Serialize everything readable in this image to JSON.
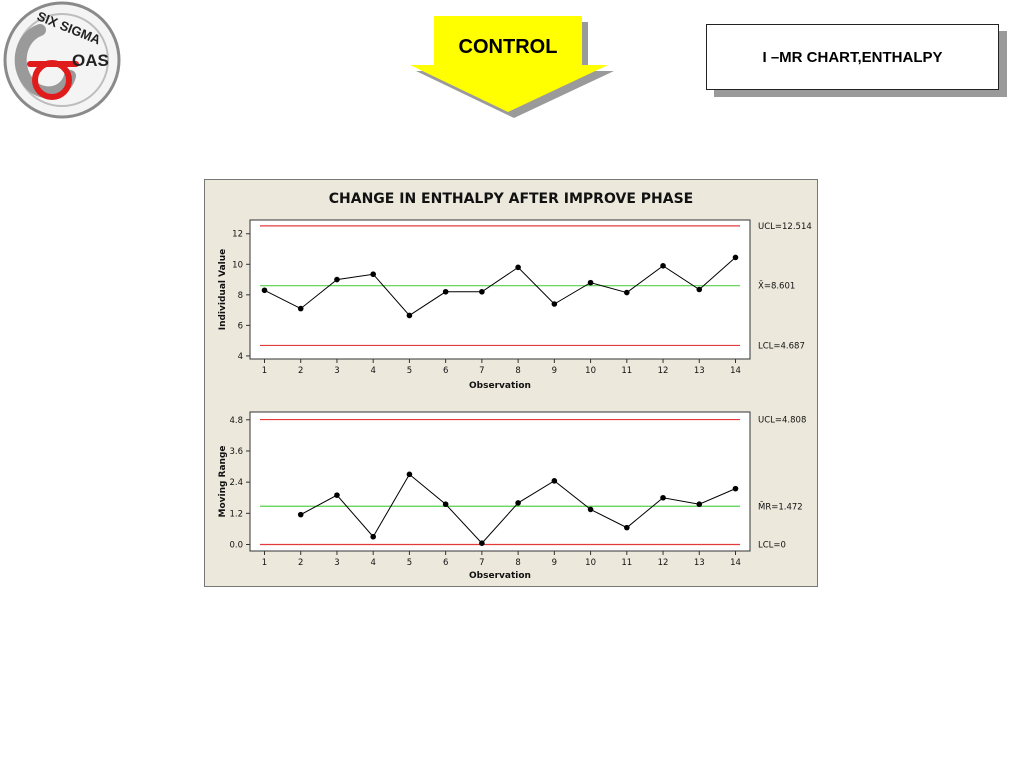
{
  "logo": {
    "top_text": "SIX SIGMA",
    "side_text": "OAS"
  },
  "header": {
    "section_label": "CONTROL",
    "chart_title_box": "I –MR CHART,ENTHALPY"
  },
  "colors": {
    "limit_line": "#e33b3b",
    "center_line": "#55d24a",
    "panel_bg": "#ece8dc",
    "arrow": "#ffff00"
  },
  "chart_data": [
    {
      "type": "line",
      "title": "CHANGE IN ENTHALPY AFTER IMPROVE PHASE",
      "xlabel": "Observation",
      "ylabel": "Individual Value",
      "x": [
        1,
        2,
        3,
        4,
        5,
        6,
        7,
        8,
        9,
        10,
        11,
        12,
        13,
        14
      ],
      "values": [
        8.3,
        7.1,
        9.0,
        9.35,
        6.65,
        8.2,
        8.2,
        9.8,
        7.4,
        8.8,
        8.15,
        9.9,
        8.35,
        10.45
      ],
      "ylim": [
        3.8,
        12.9
      ],
      "yticks": [
        4,
        6,
        8,
        10,
        12
      ],
      "ucl": {
        "value": 12.514,
        "label": "UCL=12.514"
      },
      "center": {
        "value": 8.601,
        "label": "X̄=8.601"
      },
      "lcl": {
        "value": 4.687,
        "label": "LCL=4.687"
      },
      "grid": false
    },
    {
      "type": "line",
      "xlabel": "Observation",
      "ylabel": "Moving Range",
      "x": [
        2,
        3,
        4,
        5,
        6,
        7,
        8,
        9,
        10,
        11,
        12,
        13,
        14
      ],
      "values": [
        1.15,
        1.9,
        0.3,
        2.7,
        1.55,
        0.05,
        1.6,
        2.45,
        1.35,
        0.65,
        1.8,
        1.55,
        2.15
      ],
      "ylim": [
        -0.25,
        5.1
      ],
      "yticks": [
        "0.0",
        "1.2",
        "2.4",
        "3.6",
        "4.8"
      ],
      "ucl": {
        "value": 4.808,
        "label": "UCL=4.808"
      },
      "center": {
        "value": 1.472,
        "label": "M̄R=1.472"
      },
      "lcl": {
        "value": 0,
        "label": "LCL=0"
      },
      "grid": false
    }
  ]
}
